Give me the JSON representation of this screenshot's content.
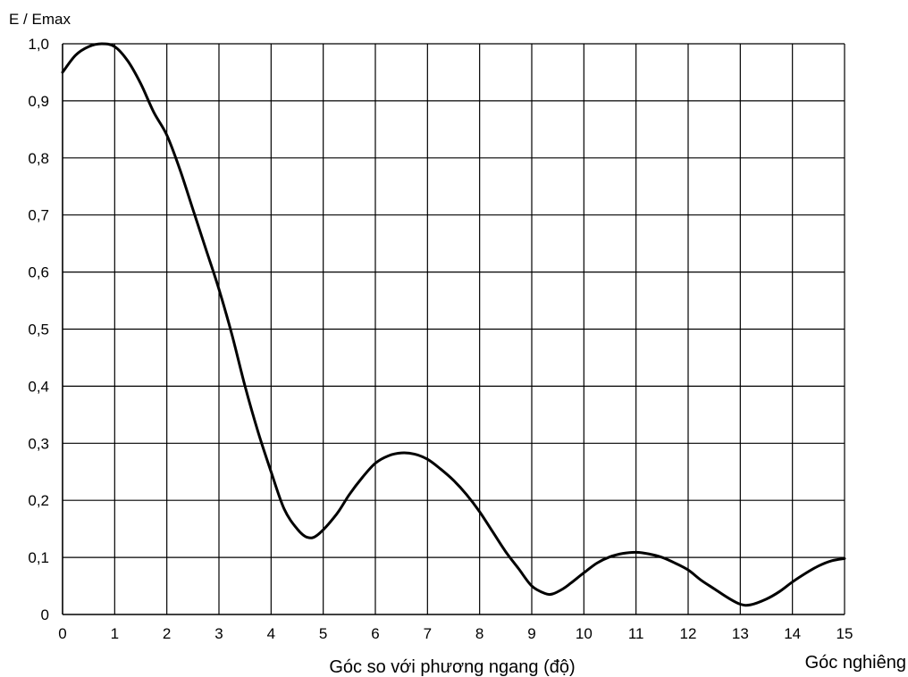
{
  "chart_data": {
    "type": "line",
    "ylabel": "E / Emax",
    "xlabel": "Góc so với phương ngang (độ)",
    "xlabel_secondary": "Góc nghiêng",
    "xlim": [
      0,
      15
    ],
    "ylim": [
      0,
      1.0
    ],
    "grid": true,
    "x_ticks": [
      "0",
      "1",
      "2",
      "3",
      "4",
      "5",
      "6",
      "7",
      "8",
      "9",
      "10",
      "11",
      "12",
      "13",
      "14",
      "15"
    ],
    "y_ticks": [
      "0",
      "0,1",
      "0,2",
      "0,3",
      "0,4",
      "0,5",
      "0,6",
      "0,7",
      "0,8",
      "0,9",
      "1,0"
    ],
    "series": [
      {
        "color": "#000000",
        "x": [
          0,
          0.25,
          0.5,
          0.75,
          1,
          1.25,
          1.5,
          1.75,
          2,
          2.25,
          2.5,
          2.75,
          3,
          3.25,
          3.5,
          3.75,
          4,
          4.25,
          4.5,
          4.7,
          4.9,
          5.25,
          5.5,
          5.75,
          6,
          6.25,
          6.5,
          6.75,
          7,
          7.25,
          7.5,
          7.75,
          8,
          8.25,
          8.5,
          8.75,
          9,
          9.25,
          9.4,
          9.6,
          9.75,
          10,
          10.25,
          10.5,
          10.75,
          11,
          11.25,
          11.5,
          11.75,
          12,
          12.25,
          12.5,
          12.75,
          13,
          13.2,
          13.5,
          13.75,
          14,
          14.25,
          14.5,
          14.75,
          15
        ],
        "y": [
          0.95,
          0.98,
          0.995,
          1.0,
          0.995,
          0.97,
          0.93,
          0.88,
          0.84,
          0.78,
          0.71,
          0.64,
          0.57,
          0.49,
          0.4,
          0.32,
          0.25,
          0.185,
          0.15,
          0.135,
          0.14,
          0.175,
          0.21,
          0.24,
          0.265,
          0.278,
          0.283,
          0.281,
          0.272,
          0.255,
          0.235,
          0.21,
          0.18,
          0.145,
          0.11,
          0.08,
          0.05,
          0.037,
          0.036,
          0.045,
          0.055,
          0.073,
          0.09,
          0.101,
          0.107,
          0.109,
          0.106,
          0.1,
          0.09,
          0.078,
          0.06,
          0.045,
          0.03,
          0.018,
          0.017,
          0.027,
          0.04,
          0.057,
          0.072,
          0.085,
          0.094,
          0.098
        ]
      }
    ]
  }
}
